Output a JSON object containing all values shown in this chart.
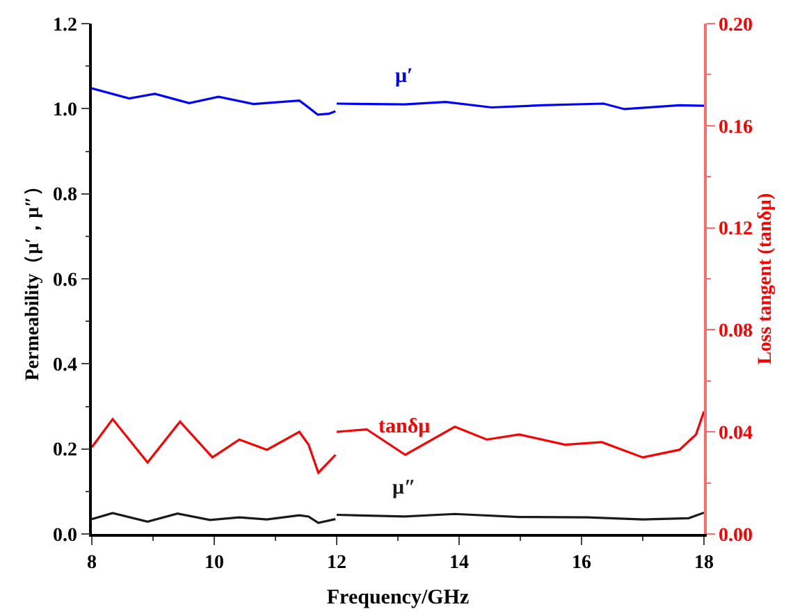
{
  "chart_data": {
    "type": "line",
    "xlabel": "Frequency/GHz",
    "ylabel": "Permeability（μ′，μ″）",
    "y2label": "Loss tangent (tanδμ)",
    "xlim": [
      8,
      18
    ],
    "xticks": [
      8,
      10,
      12,
      14,
      16,
      18
    ],
    "ylim": [
      0,
      1.2
    ],
    "yticks": [
      {
        "value": 0,
        "label": "0.0"
      },
      0.2,
      0.4,
      0.6,
      0.8,
      {
        "value": 1,
        "label": "1.0"
      },
      1.2
    ],
    "y2lim": [
      0,
      0.2
    ],
    "y2ticks": [
      {
        "value": 0,
        "label": "0.00"
      },
      {
        "value": 0.04,
        "label": "0.04"
      },
      {
        "value": 0.08,
        "label": "0.08"
      },
      {
        "value": 0.12,
        "label": "0.12"
      },
      {
        "value": 0.16,
        "label": "0.16"
      },
      {
        "value": 0.2,
        "label": "0.20"
      }
    ],
    "grid": false,
    "legend": false,
    "marker": "none",
    "line_style": "solid",
    "series": [
      {
        "name": "μ′",
        "color": "#0000ff",
        "x": [
          8.0,
          8.61,
          9.03,
          9.59,
          10.07,
          10.64,
          11.39,
          11.53,
          11.69,
          11.87,
          11.98,
          11.99,
          12.0,
          13.11,
          13.78,
          14.53,
          15.35,
          16.36,
          16.7,
          17.6,
          18.0
        ],
        "values": [
          1.048,
          1.024,
          1.035,
          1.013,
          1.028,
          1.011,
          1.019,
          1.004,
          0.986,
          0.988,
          0.994,
          null,
          1.012,
          1.01,
          1.016,
          1.003,
          1.008,
          1.012,
          0.999,
          1.008,
          1.007
        ]
      },
      {
        "name": "tanδμ",
        "color": "#ff0000",
        "axis": "y2",
        "x": [
          8.0,
          8.34,
          8.91,
          9.44,
          9.97,
          10.41,
          10.86,
          11.39,
          11.54,
          11.7,
          11.98,
          11.99,
          12.0,
          12.49,
          13.12,
          13.93,
          14.45,
          14.98,
          15.73,
          16.33,
          17.0,
          17.6,
          17.87,
          18.0
        ],
        "values": [
          0.034,
          0.045,
          0.028,
          0.044,
          0.03,
          0.037,
          0.033,
          0.04,
          0.035,
          0.024,
          0.031,
          null,
          0.04,
          0.041,
          0.031,
          0.042,
          0.037,
          0.039,
          0.035,
          0.036,
          0.03,
          0.033,
          0.039,
          0.048
        ]
      },
      {
        "name": "μ″",
        "color": "#1a1a1a",
        "x": [
          8.0,
          8.34,
          8.91,
          9.4,
          9.93,
          10.41,
          10.86,
          11.39,
          11.54,
          11.7,
          11.98,
          11.99,
          12.0,
          13.11,
          13.93,
          14.98,
          16.1,
          17.0,
          17.75,
          18.0
        ],
        "values": [
          0.035,
          0.049,
          0.029,
          0.048,
          0.033,
          0.039,
          0.034,
          0.044,
          0.041,
          0.026,
          0.035,
          null,
          0.045,
          0.041,
          0.047,
          0.04,
          0.039,
          0.034,
          0.037,
          0.05
        ]
      }
    ]
  }
}
